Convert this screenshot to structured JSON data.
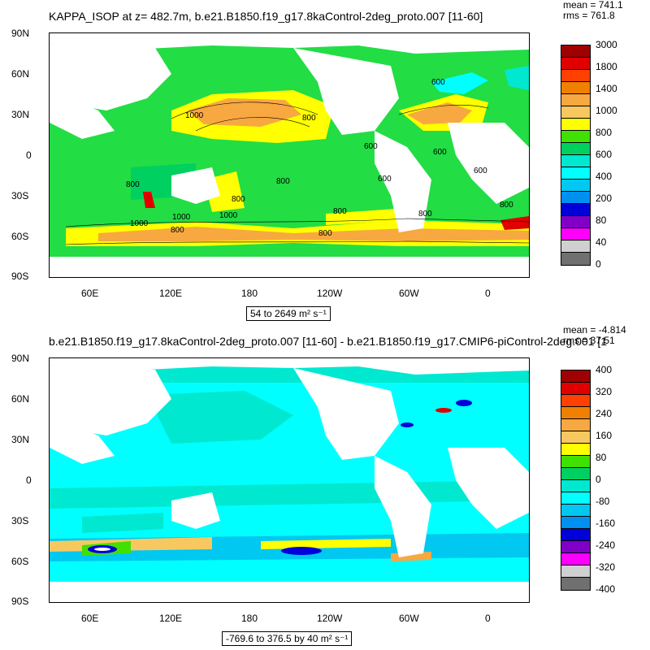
{
  "panel1": {
    "title": "KAPPA_ISOP at z= 482.7m, b.e21.B1850.f19_g17.8kaControl-2deg_proto.007 [11-60]",
    "mean": "mean = 741.1",
    "rms": "rms = 761.8",
    "range": "54 to 2649 m² s⁻¹",
    "contour_labels": [
      "1000",
      "800",
      "600",
      "800",
      "600",
      "600",
      "800",
      "1000",
      "1000",
      "800",
      "800",
      "800",
      "600",
      "800",
      "1000",
      "800",
      "600",
      "800"
    ],
    "legend": {
      "labels": [
        "3000",
        "1800",
        "1400",
        "1000",
        "800",
        "600",
        "400",
        "200",
        "80",
        "40",
        "0"
      ],
      "colors": [
        "#a00000",
        "#e00000",
        "#ff4000",
        "#f08000",
        "#f8a840",
        "#f8c860",
        "#ffff00",
        "#40e000",
        "#00d060",
        "#00e8d0",
        "#00ffff",
        "#00c8f0",
        "#0090f0",
        "#0000d8",
        "#8000c8",
        "#ff00ff",
        "#d0d0d0",
        "#707070"
      ]
    }
  },
  "panel2": {
    "title": "b.e21.B1850.f19_g17.8kaControl-2deg_proto.007 [11-60] - b.e21.B1850.f19_g17.CMIP6-piControl-2deg.001 [1",
    "mean": "mean = -4.814",
    "rms": "rms = 37.51",
    "range": "-769.6 to 376.5 by 40 m² s⁻¹",
    "legend": {
      "labels": [
        "400",
        "320",
        "240",
        "160",
        "80",
        "0",
        "-80",
        "-160",
        "-240",
        "-320",
        "-400"
      ],
      "colors": [
        "#a00000",
        "#e00000",
        "#ff4000",
        "#f08000",
        "#f8a840",
        "#f8c860",
        "#ffff00",
        "#40e000",
        "#00d060",
        "#00e8d0",
        "#00ffff",
        "#00c8f0",
        "#0090f0",
        "#0000d8",
        "#8000c8",
        "#ff00ff",
        "#d0d0d0",
        "#707070"
      ]
    }
  },
  "axes": {
    "lat_labels": [
      "90N",
      "60N",
      "30N",
      "0",
      "30S",
      "60S",
      "90S"
    ],
    "lon_labels": [
      "60E",
      "120E",
      "180",
      "120W",
      "60W",
      "0"
    ]
  }
}
